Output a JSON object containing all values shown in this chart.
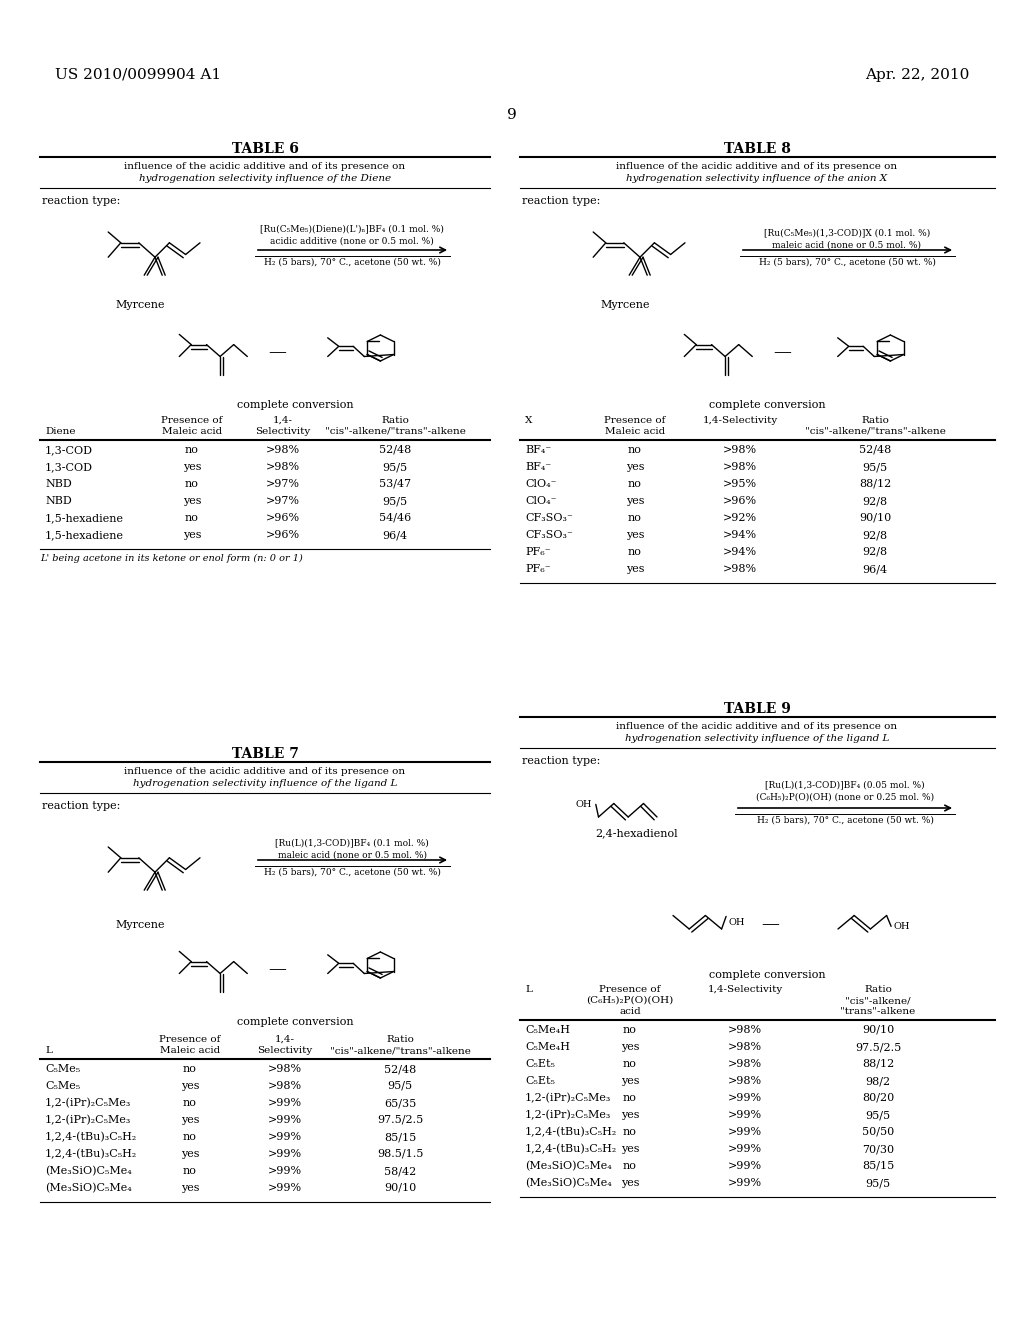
{
  "background_color": "#ffffff",
  "header_left": "US 2010/0099904 A1",
  "header_right": "Apr. 22, 2010",
  "page_number": "9",
  "table6_title": "TABLE 6",
  "table6_subtitle1": "influence of the acidic additive and of its presence on",
  "table6_subtitle2": "hydrogenation selectivity influence of the Diene",
  "table6_reaction_label": "reaction type:",
  "table6_reagent": "[Ru(C₅Me₅)(Diene)(L')ₙ]BF₄ (0.1 mol. %)",
  "table6_additive": "acidic additive (none or 0.5 mol. %)",
  "table6_conditions": "H₂ (5 bars), 70° C., acetone (50 wt. %)",
  "table6_substrate": "Myrcene",
  "table6_product_label": "complete conversion",
  "table6_footnote": "L' being acetone in its ketone or enol form (n: 0 or 1)",
  "table6_rows": [
    [
      "1,3-COD",
      "no",
      ">98%",
      "52/48"
    ],
    [
      "1,3-COD",
      "yes",
      ">98%",
      "95/5"
    ],
    [
      "NBD",
      "no",
      ">97%",
      "53/47"
    ],
    [
      "NBD",
      "yes",
      ">97%",
      "95/5"
    ],
    [
      "1,5-hexadiene",
      "no",
      ">96%",
      "54/46"
    ],
    [
      "1,5-hexadiene",
      "yes",
      ">96%",
      "96/4"
    ]
  ],
  "table8_title": "TABLE 8",
  "table8_subtitle1": "influence of the acidic additive and of its presence on",
  "table8_subtitle2": "hydrogenation selectivity influence of the anion X",
  "table8_reaction_label": "reaction type:",
  "table8_reagent": "[Ru(C₅Me₅)(1,3-COD)]X (0.1 mol. %)",
  "table8_additive": "maleic acid (none or 0.5 mol. %)",
  "table8_conditions": "H₂ (5 bars), 70° C., acetone (50 wt. %)",
  "table8_substrate": "Myrcene",
  "table8_product_label": "complete conversion",
  "table8_rows": [
    [
      "BF₄⁻",
      "no",
      ">98%",
      "52/48"
    ],
    [
      "BF₄⁻",
      "yes",
      ">98%",
      "95/5"
    ],
    [
      "ClO₄⁻",
      "no",
      ">95%",
      "88/12"
    ],
    [
      "ClO₄⁻",
      "yes",
      ">96%",
      "92/8"
    ],
    [
      "CF₃SO₃⁻",
      "no",
      ">92%",
      "90/10"
    ],
    [
      "CF₃SO₃⁻",
      "yes",
      ">94%",
      "92/8"
    ],
    [
      "PF₆⁻",
      "no",
      ">94%",
      "92/8"
    ],
    [
      "PF₆⁻",
      "yes",
      ">98%",
      "96/4"
    ]
  ],
  "table7_title": "TABLE 7",
  "table7_subtitle1": "influence of the acidic additive and of its presence on",
  "table7_subtitle2": "hydrogenation selectivity influence of the ligand L",
  "table7_reaction_label": "reaction type:",
  "table7_reagent": "[Ru(L)(1,3-COD)]BF₄ (0.1 mol. %)",
  "table7_additive": "maleic acid (none or 0.5 mol. %)",
  "table7_conditions": "H₂ (5 bars), 70° C., acetone (50 wt. %)",
  "table7_substrate": "Myrcene",
  "table7_product_label": "complete conversion",
  "table7_rows": [
    [
      "C₅Me₅",
      "no",
      ">98%",
      "52/48"
    ],
    [
      "C₅Me₅",
      "yes",
      ">98%",
      "95/5"
    ],
    [
      "1,2-(iPr)₂C₅Me₃",
      "no",
      ">99%",
      "65/35"
    ],
    [
      "1,2-(iPr)₂C₅Me₃",
      "yes",
      ">99%",
      "97.5/2.5"
    ],
    [
      "1,2,4-(tBu)₃C₅H₂",
      "no",
      ">99%",
      "85/15"
    ],
    [
      "1,2,4-(tBu)₃C₅H₂",
      "yes",
      ">99%",
      "98.5/1.5"
    ],
    [
      "(Me₃SiO)C₅Me₄",
      "no",
      ">99%",
      "58/42"
    ],
    [
      "(Me₃SiO)C₅Me₄",
      "yes",
      ">99%",
      "90/10"
    ]
  ],
  "table9_title": "TABLE 9",
  "table9_subtitle1": "influence of the acidic additive and of its presence on",
  "table9_subtitle2": "hydrogenation selectivity influence of the ligand L",
  "table9_reaction_label": "reaction type:",
  "table9_reagent": "[Ru(L)(1,3-COD)]BF₄ (0.05 mol. %)",
  "table9_additive": "(C₆H₅)₂P(O)(OH) (none or 0.25 mol. %)",
  "table9_conditions": "H₂ (5 bars), 70° C., acetone (50 wt. %)",
  "table9_substrate": "2,4-hexadienol",
  "table9_product_label": "complete conversion",
  "table9_rows": [
    [
      "C₅Me₄H",
      "no",
      ">98%",
      "90/10"
    ],
    [
      "C₅Me₄H",
      "yes",
      ">98%",
      "97.5/2.5"
    ],
    [
      "C₅Et₅",
      "no",
      ">98%",
      "88/12"
    ],
    [
      "C₅Et₅",
      "yes",
      ">98%",
      "98/2"
    ],
    [
      "1,2-(iPr)₂C₅Me₃",
      "no",
      ">99%",
      "80/20"
    ],
    [
      "1,2-(iPr)₂C₅Me₃",
      "yes",
      ">99%",
      "95/5"
    ],
    [
      "1,2,4-(tBu)₃C₅H₂",
      "no",
      ">99%",
      "50/50"
    ],
    [
      "1,2,4-(tBu)₃C₅H₂",
      "yes",
      ">99%",
      "70/30"
    ],
    [
      "(Me₃SiO)C₅Me₄",
      "no",
      ">99%",
      "85/15"
    ],
    [
      "(Me₃SiO)C₅Me₄",
      "yes",
      ">99%",
      "95/5"
    ]
  ]
}
